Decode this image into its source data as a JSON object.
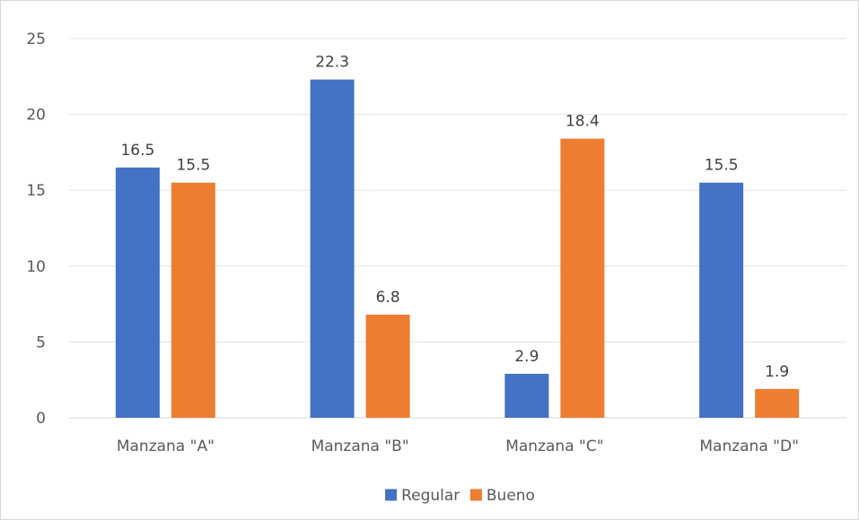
{
  "chart_data": {
    "type": "bar",
    "title": "",
    "xlabel": "",
    "ylabel": "",
    "categories": [
      "Manzana \"A\"",
      "Manzana \"B\"",
      "Manzana \"C\"",
      "Manzana \"D\""
    ],
    "series": [
      {
        "name": "Regular",
        "color": "#4472c4",
        "values": [
          16.5,
          22.3,
          2.9,
          15.5
        ]
      },
      {
        "name": "Bueno",
        "color": "#ed7d31",
        "values": [
          15.5,
          6.8,
          18.4,
          1.9
        ]
      }
    ],
    "ylim": [
      0,
      25
    ],
    "yticks": [
      0,
      5,
      10,
      15,
      20,
      25
    ],
    "grid": true,
    "legend_position": "bottom",
    "data_labels": true
  }
}
